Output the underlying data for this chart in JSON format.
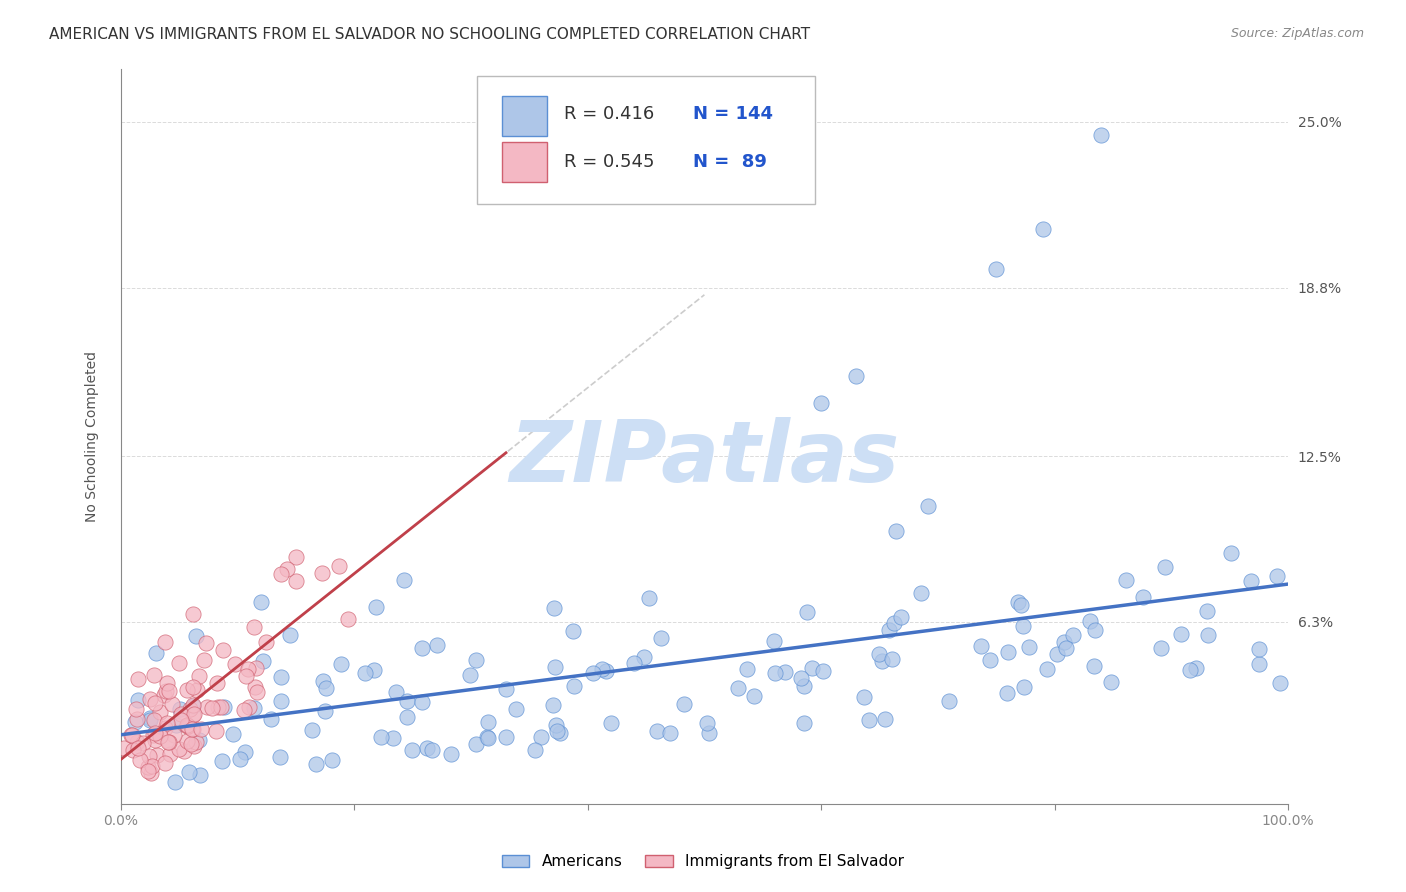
{
  "title": "AMERICAN VS IMMIGRANTS FROM EL SALVADOR NO SCHOOLING COMPLETED CORRELATION CHART",
  "source": "Source: ZipAtlas.com",
  "ylabel": "No Schooling Completed",
  "yticks": [
    0.0,
    0.063,
    0.125,
    0.188,
    0.25
  ],
  "ytick_labels": [
    "",
    "6.3%",
    "12.5%",
    "18.8%",
    "25.0%"
  ],
  "xlim": [
    0.0,
    1.0
  ],
  "ylim": [
    -0.005,
    0.27
  ],
  "color_american_fill": "#aec6e8",
  "color_american_edge": "#5b8fd4",
  "color_salvador_fill": "#f4b8c4",
  "color_salvador_edge": "#d06070",
  "color_american_line": "#4472c4",
  "color_salvador_line": "#c0404a",
  "color_dashed": "#c0c0c0",
  "watermark": "ZIPatlas",
  "watermark_color": "#cddff5",
  "r_american": 0.416,
  "n_american": 144,
  "r_salvador": 0.545,
  "n_salvador": 89,
  "seed": 77,
  "background_color": "#ffffff",
  "grid_color": "#cccccc",
  "title_fontsize": 11,
  "axis_label_fontsize": 10,
  "tick_fontsize": 10,
  "legend_fontsize": 13,
  "leg_r1": "R = 0.416",
  "leg_n1": "N = 144",
  "leg_r2": "R = 0.545",
  "leg_n2": "N =  89",
  "label_american": "Americans",
  "label_salvador": "Immigrants from El Salvador"
}
